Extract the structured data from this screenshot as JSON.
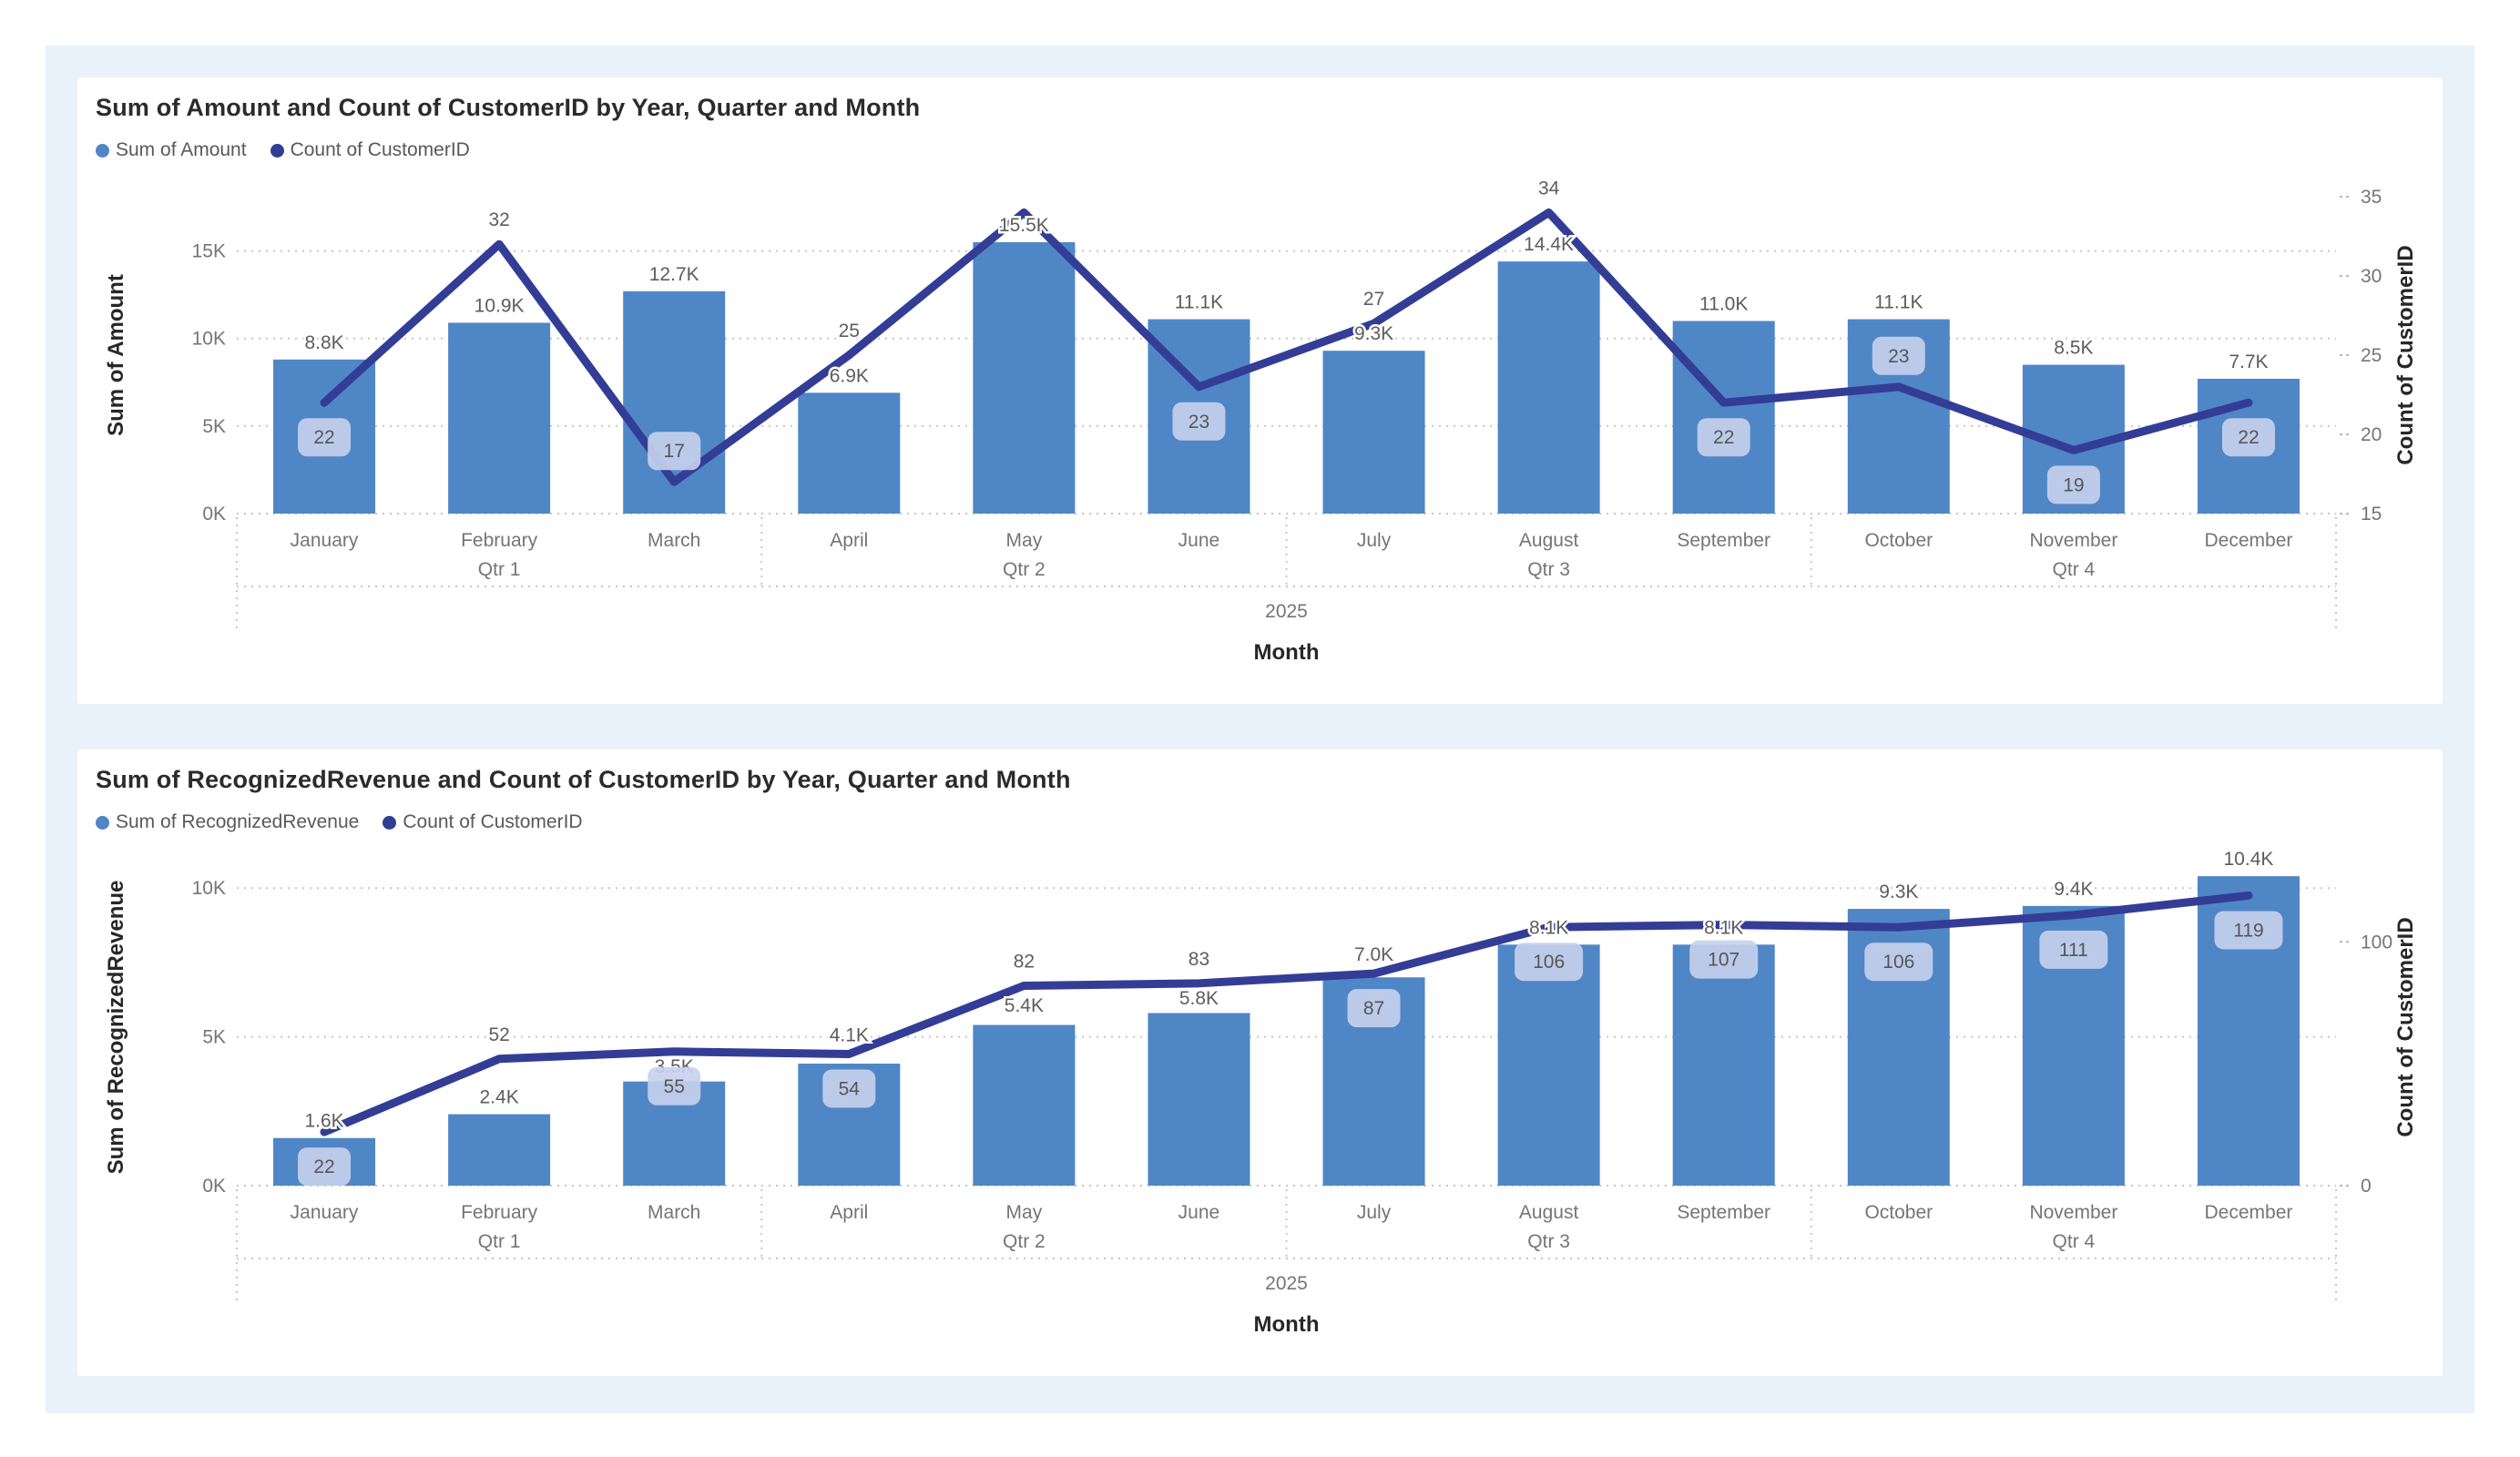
{
  "page": {
    "background": "#ffffff",
    "panel_background": "#e9f1fb",
    "card_background": "#ffffff"
  },
  "colors": {
    "bar": "#4f86c6",
    "line": "#333d96",
    "label_box_bg": "#c8d2ec",
    "label_box_text": "#565656",
    "data_label_text": "#5d5d5d",
    "axis_tick_text": "#757575",
    "axis_title_text": "#272727",
    "gridline": "#c6c6c6",
    "title_text": "#2b2b2b",
    "legend_text": "#5a5858"
  },
  "chart_data": [
    {
      "type": "bar+line combo",
      "title": "Sum of Amount and Count of CustomerID by Year, Quarter and Month",
      "legend": [
        "Sum of Amount",
        "Count of CustomerID"
      ],
      "xlabel": "Month",
      "year": "2025",
      "quarters": [
        "Qtr 1",
        "Qtr 2",
        "Qtr 3",
        "Qtr 4"
      ],
      "months": [
        "January",
        "February",
        "March",
        "April",
        "May",
        "June",
        "July",
        "August",
        "September",
        "October",
        "November",
        "December"
      ],
      "left_axis": {
        "title": "Sum of Amount",
        "tick_labels": [
          "0K",
          "5K",
          "10K",
          "15K"
        ],
        "tick_values": [
          0,
          5000,
          10000,
          15000
        ],
        "range": [
          0,
          18100
        ]
      },
      "right_axis": {
        "title": "Count of CustomerID",
        "tick_labels": [
          "15",
          "20",
          "25",
          "30",
          "35"
        ],
        "tick_values": [
          15,
          20,
          25,
          30,
          35
        ],
        "range": [
          15,
          35
        ]
      },
      "bar_series": {
        "name": "Sum of Amount",
        "values": [
          8800,
          10900,
          12700,
          6900,
          15500,
          11100,
          9300,
          14400,
          11000,
          11100,
          8500,
          7700
        ],
        "labels": [
          "8.8K",
          "10.9K",
          "12.7K",
          "6.9K",
          "15.5K",
          "11.1K",
          "9.3K",
          "14.4K",
          "11.0K",
          "11.1K",
          "8.5K",
          "7.7K"
        ],
        "label_modes": [
          "above",
          "above",
          "above",
          "above",
          "above",
          "above",
          "above",
          "above",
          "above",
          "above",
          "above",
          "above"
        ]
      },
      "line_series": {
        "name": "Count of CustomerID",
        "values": [
          22,
          32,
          17,
          25,
          34,
          23,
          27,
          34,
          22,
          23,
          19,
          22
        ],
        "labels": [
          "22",
          "32",
          "17",
          "25",
          "",
          "23",
          "27",
          "34",
          "22",
          "23",
          "19",
          "22"
        ],
        "label_styles": [
          "box-below",
          "plain",
          "box-above",
          "plain",
          "hidden",
          "box-below",
          "plain",
          "plain",
          "box-below",
          "box-above",
          "box-below",
          "box-below"
        ]
      }
    },
    {
      "type": "bar+line combo",
      "title": "Sum of RecognizedRevenue and Count of CustomerID by Year, Quarter and Month",
      "legend": [
        "Sum of RecognizedRevenue",
        "Count of CustomerID"
      ],
      "xlabel": "Month",
      "year": "2025",
      "quarters": [
        "Qtr 1",
        "Qtr 2",
        "Qtr 3",
        "Qtr 4"
      ],
      "months": [
        "January",
        "February",
        "March",
        "April",
        "May",
        "June",
        "July",
        "August",
        "September",
        "October",
        "November",
        "December"
      ],
      "left_axis": {
        "title": "Sum of RecognizedRevenue",
        "tick_labels": [
          "0K",
          "5K",
          "10K"
        ],
        "tick_values": [
          0,
          5000,
          10000
        ],
        "range": [
          0,
          10650
        ]
      },
      "right_axis": {
        "title": "Count of CustomerID",
        "tick_labels": [
          "0",
          "100"
        ],
        "tick_values": [
          0,
          100
        ],
        "range": [
          0,
          130
        ]
      },
      "bar_series": {
        "name": "Sum of RecognizedRevenue",
        "values": [
          1600,
          2400,
          3500,
          4100,
          5400,
          5800,
          7000,
          8100,
          8100,
          9300,
          9400,
          10400
        ],
        "labels": [
          "1.6K",
          "2.4K",
          "3.5K",
          "4.1K",
          "5.4K",
          "5.8K",
          "7.0K",
          "8.1K",
          "8.1K",
          "9.3K",
          "9.4K",
          "10.4K"
        ],
        "label_modes": [
          "above",
          "above",
          "between",
          "above-line",
          "between",
          "between",
          "above-line",
          "above",
          "above",
          "above",
          "above",
          "above"
        ]
      },
      "line_series": {
        "name": "Count of CustomerID",
        "values": [
          22,
          52,
          55,
          54,
          82,
          83,
          87,
          106,
          107,
          106,
          111,
          119
        ],
        "labels": [
          "22",
          "52",
          "55",
          "54",
          "82",
          "83",
          "87",
          "106",
          "107",
          "106",
          "111",
          "119"
        ],
        "label_styles": [
          "box-below",
          "plain",
          "box-below",
          "box-below",
          "plain",
          "plain",
          "box-below",
          "box-below",
          "box-below",
          "box-below",
          "box-below",
          "box-below"
        ]
      }
    }
  ]
}
